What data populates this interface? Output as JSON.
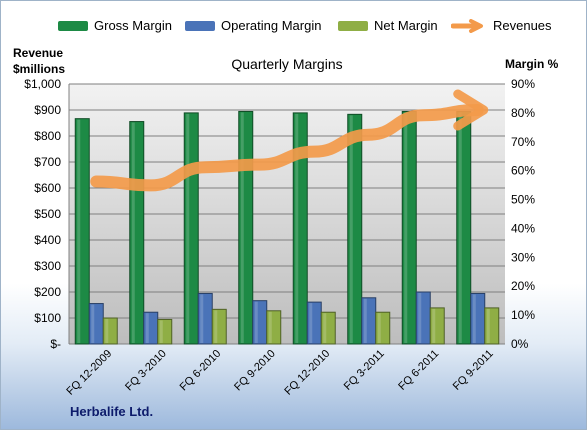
{
  "chart_data": {
    "type": "bar",
    "title": "Quarterly Margins",
    "categories": [
      "FQ 12-2009",
      "FQ 3-2010",
      "FQ 6-2010",
      "FQ 9-2010",
      "FQ 12-2010",
      "FQ 3-2011",
      "FQ 6-2011",
      "FQ 9-2011"
    ],
    "series": [
      {
        "name": "Gross Margin",
        "axis": "right",
        "values": [
          78,
          77,
          80,
          80.5,
          80,
          79.5,
          80.5,
          80.5
        ],
        "color": "#1d8a45"
      },
      {
        "name": "Operating Margin",
        "axis": "right",
        "values": [
          14,
          11,
          17.5,
          15,
          14.5,
          16,
          18,
          17.5
        ],
        "color": "#4a73b8"
      },
      {
        "name": "Net Margin",
        "axis": "right",
        "values": [
          9,
          8.5,
          12,
          11.5,
          11,
          11,
          12.5,
          12.5
        ],
        "color": "#8fae45"
      },
      {
        "name": "Revenues",
        "axis": "left",
        "type": "line",
        "values": [
          625,
          610,
          680,
          690,
          740,
          805,
          880,
          900
        ],
        "color": "#f39a4a"
      }
    ],
    "left_axis": {
      "label_line1": "Revenue",
      "label_line2": "$millions",
      "range": [
        0,
        1000
      ],
      "ticks": [
        "$-",
        "$100",
        "$200",
        "$300",
        "$400",
        "$500",
        "$600",
        "$700",
        "$800",
        "$900",
        "$1,000"
      ]
    },
    "right_axis": {
      "label": "Margin %",
      "range": [
        0,
        90
      ],
      "ticks": [
        "0%",
        "10%",
        "20%",
        "30%",
        "40%",
        "50%",
        "60%",
        "70%",
        "80%",
        "90%"
      ]
    },
    "grid": true,
    "legend_position": "top"
  },
  "legend": [
    {
      "label": "Gross Margin",
      "color": "#1d8a45",
      "kind": "bar"
    },
    {
      "label": "Operating Margin",
      "color": "#4a73b8",
      "kind": "bar"
    },
    {
      "label": "Net Margin",
      "color": "#8fae45",
      "kind": "bar"
    },
    {
      "label": "Revenues",
      "color": "#f39a4a",
      "kind": "arrow"
    }
  ],
  "company": "Herbalife Ltd."
}
